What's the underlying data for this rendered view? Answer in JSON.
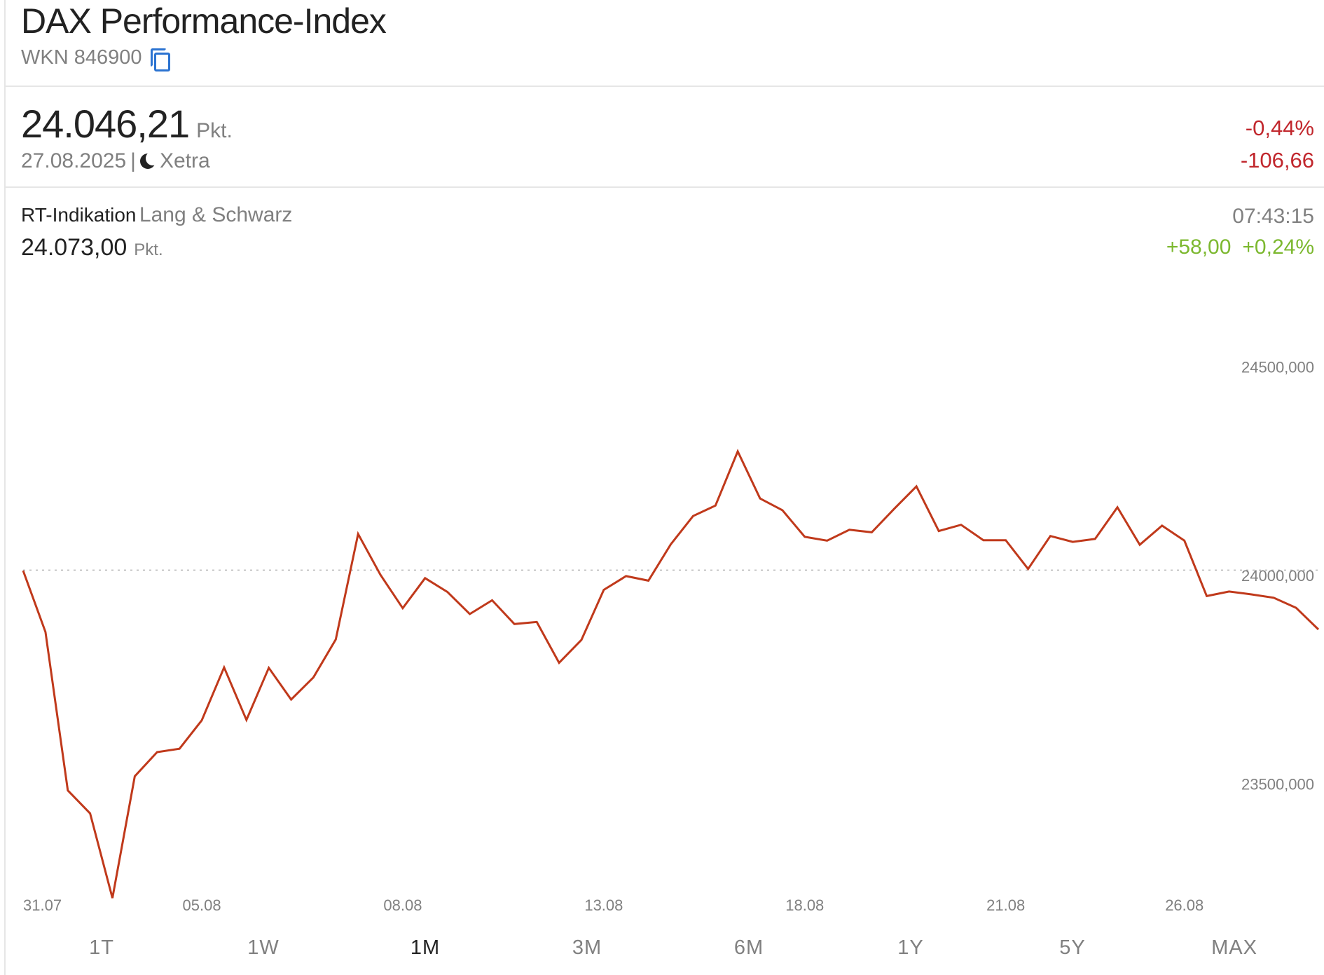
{
  "header": {
    "title": "DAX Performance-Index",
    "wkn": "WKN 846900"
  },
  "quote": {
    "price": "24.046,21",
    "unit": "Pkt.",
    "date": "27.08.2025",
    "separator": "|",
    "exchange": "Xetra",
    "change_pct": "-0,44%",
    "change_abs": "-106,66",
    "negative_color": "#c1272d"
  },
  "realtime": {
    "label": "RT-Indikation",
    "source": "Lang & Schwarz",
    "price": "24.073,00",
    "unit": "Pkt.",
    "time": "07:43:15",
    "change_abs": "+58,00",
    "change_pct": "+0,24%",
    "positive_color": "#7cb82f"
  },
  "chart_data": {
    "type": "line",
    "line_color": "#c0391b",
    "reference_line": 24046.21,
    "ylim": [
      23420,
      24620
    ],
    "yticks": [
      23500,
      24000,
      24500
    ],
    "ytick_labels": [
      "23500,000",
      "24000,000",
      "24500,000"
    ],
    "xtick_labels": [
      "31.07",
      "05.08",
      "08.08",
      "13.08",
      "18.08",
      "21.08",
      "26.08"
    ],
    "xtick_indices": [
      1,
      8,
      17,
      26,
      35,
      44,
      52
    ],
    "grid": false,
    "values": [
      24045,
      23898,
      23518,
      23463,
      23260,
      23552,
      23610,
      23618,
      23686,
      23813,
      23687,
      23812,
      23736,
      23789,
      23880,
      24133,
      24035,
      23955,
      24027,
      23994,
      23941,
      23974,
      23917,
      23922,
      23824,
      23879,
      23999,
      24032,
      24021,
      24108,
      24176,
      24201,
      24331,
      24218,
      24190,
      24126,
      24117,
      24143,
      24137,
      24193,
      24247,
      24140,
      24155,
      24118,
      24118,
      24049,
      24128,
      24114,
      24121,
      24197,
      24107,
      24153,
      24117,
      23984,
      23995,
      23988,
      23980,
      23956,
      23904
    ]
  },
  "ranges": {
    "items": [
      "1T",
      "1W",
      "1M",
      "3M",
      "6M",
      "1Y",
      "5Y",
      "MAX"
    ],
    "active": "1M"
  }
}
